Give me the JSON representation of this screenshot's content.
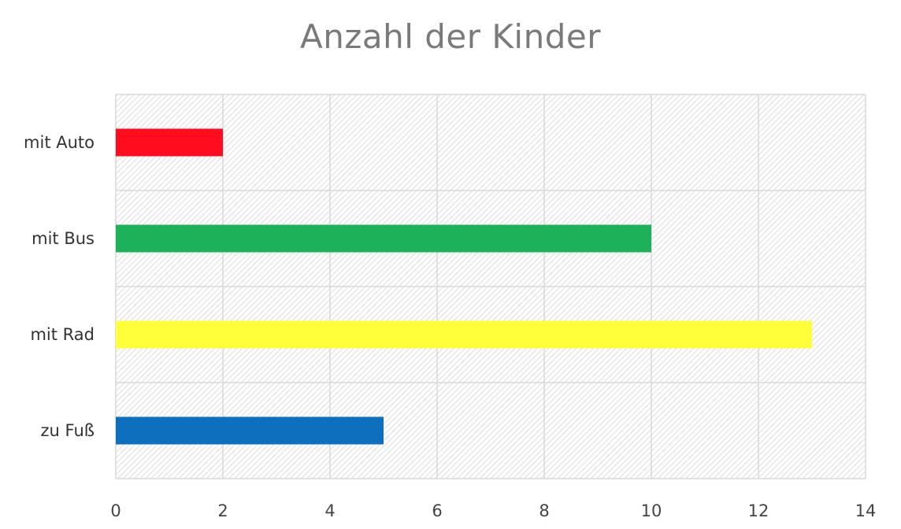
{
  "chart_data": {
    "type": "bar",
    "orientation": "horizontal",
    "title": "Anzahl der Kinder",
    "xlabel": "",
    "ylabel": "",
    "categories": [
      "mit Auto",
      "mit Bus",
      "mit Rad",
      "zu Fuß"
    ],
    "values": [
      2,
      10,
      13,
      5
    ],
    "bar_colors": [
      "#ff0d1f",
      "#1db15a",
      "#ffff3a",
      "#0f6fbf"
    ],
    "xlim": [
      0,
      14
    ],
    "x_ticks": [
      0,
      2,
      4,
      6,
      8,
      10,
      12,
      14
    ],
    "grid": true,
    "grid_color": "#d9d9d9",
    "background": "hatched-light-gray",
    "legend": "none"
  }
}
